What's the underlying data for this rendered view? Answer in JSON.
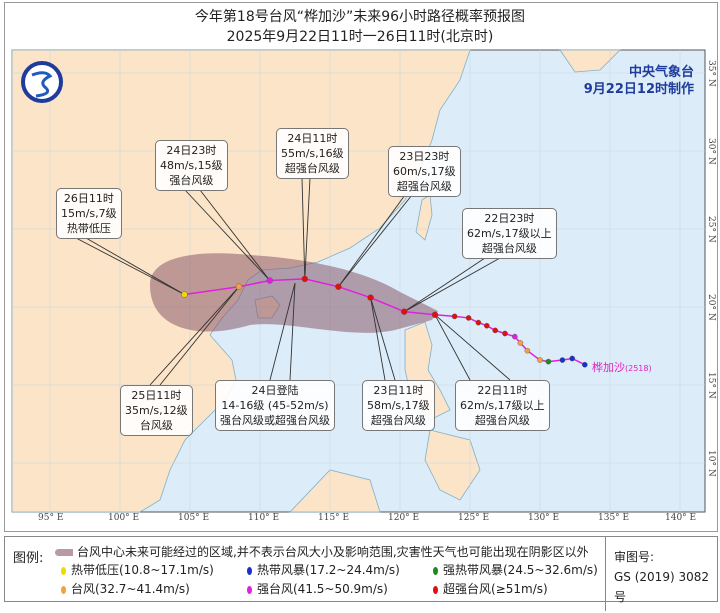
{
  "title": {
    "line1": "今年第18号台风“桦加沙”未来96小时路径概率预报图",
    "line2": "2025年9月22日11时一26日11时(北京时)"
  },
  "issuer": {
    "name": "中央气象台",
    "issued": "9月22日12时制作"
  },
  "typhoon": {
    "name": "桦加沙",
    "number": "(2518)"
  },
  "axes": {
    "lon_labels": [
      "95° E",
      "100° E",
      "105° E",
      "110° E",
      "115° E",
      "120° E",
      "125° E",
      "130° E",
      "135° E",
      "140° E"
    ],
    "lat_labels": [
      "35° N",
      "30° N",
      "25° N",
      "20° N",
      "15° N",
      "10° N"
    ]
  },
  "past_track": [
    {
      "lon": 133.2,
      "lat": 16.3,
      "cat": "ts"
    },
    {
      "lon": 132.3,
      "lat": 16.7,
      "cat": "ts"
    },
    {
      "lon": 131.6,
      "lat": 16.6,
      "cat": "ts"
    },
    {
      "lon": 130.6,
      "lat": 16.5,
      "cat": "sts"
    },
    {
      "lon": 130.0,
      "lat": 16.6,
      "cat": "ty"
    },
    {
      "lon": 129.1,
      "lat": 17.2,
      "cat": "ty"
    },
    {
      "lon": 128.6,
      "lat": 17.7,
      "cat": "ty"
    },
    {
      "lon": 128.2,
      "lat": 18.1,
      "cat": "sty"
    },
    {
      "lon": 127.5,
      "lat": 18.3,
      "cat": "super"
    },
    {
      "lon": 126.8,
      "lat": 18.5,
      "cat": "super"
    },
    {
      "lon": 126.2,
      "lat": 18.8,
      "cat": "super"
    },
    {
      "lon": 125.6,
      "lat": 19.0,
      "cat": "super"
    },
    {
      "lon": 124.9,
      "lat": 19.3,
      "cat": "super"
    },
    {
      "lon": 123.9,
      "lat": 19.4,
      "cat": "super"
    }
  ],
  "forecast": [
    {
      "time": "22日11时",
      "lon": 122.5,
      "lat": 19.5,
      "cat": "super",
      "lines": [
        "22日11时",
        "62m/s,17级以上",
        "超强台风级"
      ]
    },
    {
      "time": "22日23时",
      "lon": 120.3,
      "lat": 19.7,
      "cat": "super",
      "lines": [
        "22日23时",
        "62m/s,17级以上",
        "超强台风级"
      ]
    },
    {
      "time": "23日11时",
      "lon": 117.9,
      "lat": 20.6,
      "cat": "super",
      "lines": [
        "23日11时",
        "58m/s,17级",
        "超强台风级"
      ]
    },
    {
      "time": "23日23时",
      "lon": 115.6,
      "lat": 21.3,
      "cat": "super",
      "lines": [
        "23日23时",
        "60m/s,17级",
        "超强台风级"
      ]
    },
    {
      "time": "24日11时",
      "lon": 113.2,
      "lat": 21.8,
      "cat": "super",
      "lines": [
        "24日11时",
        "55m/s,16级",
        "超强台风级"
      ]
    },
    {
      "time": "24日23时",
      "lon": 110.7,
      "lat": 21.7,
      "cat": "sty",
      "lines": [
        "24日23时",
        "48m/s,15级",
        "强台风级"
      ]
    },
    {
      "time": "25日11时",
      "lon": 108.5,
      "lat": 21.3,
      "cat": "ty",
      "lines": [
        "25日11时",
        "35m/s,12级",
        "台风级"
      ]
    },
    {
      "time": "26日11时",
      "lon": 104.6,
      "lat": 20.8,
      "cat": "td",
      "lines": [
        "26日11时",
        "15m/s,7级",
        "热带低压"
      ]
    }
  ],
  "landfall": {
    "lines": [
      "24日登陆",
      "14-16级 (45-52m/s)",
      "强台风级或超强台风级"
    ]
  },
  "colors": {
    "td": "#f0d800",
    "ts": "#1a2fd0",
    "sts": "#1e8a1e",
    "ty": "#f7a040",
    "sty": "#e020e0",
    "super": "#e01010",
    "track": "#e020e0",
    "cone": "#8a5a6a",
    "ocean": "#dcedf9",
    "land": "#fbe4c8"
  },
  "legend": {
    "label": "图例:",
    "cone_text": "台风中心未来可能经过的区域,并不表示台风大小及影响范围,灾害性天气也可能出现在阴影区以外",
    "items": [
      {
        "cat": "td",
        "label": "热带低压(10.8~17.1m/s)"
      },
      {
        "cat": "ts",
        "label": "热带风暴(17.2~24.4m/s)"
      },
      {
        "cat": "sts",
        "label": "强热带风暴(24.5~32.6m/s)"
      },
      {
        "cat": "ty",
        "label": "台风(32.7~41.4m/s)"
      },
      {
        "cat": "sty",
        "label": "强台风(41.5~50.9m/s)"
      },
      {
        "cat": "super",
        "label": "超强台风(≥51m/s)"
      }
    ],
    "review_label": "审图号:",
    "review_number": "GS (2019) 3082号"
  }
}
